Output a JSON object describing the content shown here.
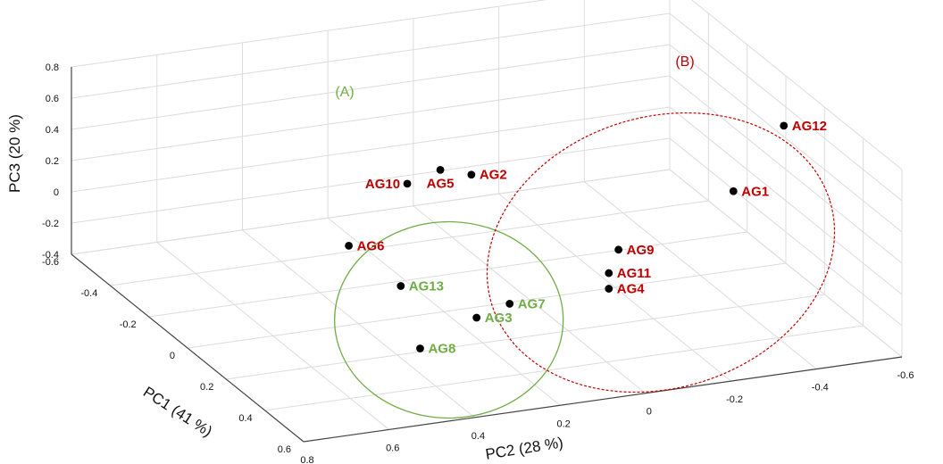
{
  "chart_data": {
    "type": "scatter",
    "dimensions": 3,
    "title": "",
    "xlabel": "PC1 (41 %)",
    "ylabel": "PC2 (28 %)",
    "zlabel": "PC3 (20 %)",
    "x_ticks": [
      "0.4",
      "0.2",
      "0",
      "-0.2",
      "-0.4",
      "-0.6",
      "0.6"
    ],
    "y_ticks": [
      "0.8",
      "0.6",
      "0.4",
      "0.2",
      "0",
      "-0.2",
      "-0.4",
      "-0.6"
    ],
    "z_ticks": [
      "0.8",
      "0.6",
      "0.4",
      "0.2",
      "0",
      "-0.2",
      "-0.4"
    ],
    "grid": true,
    "groups": [
      {
        "name": "(A)",
        "color": "#70ad47",
        "members": [
          "AG13",
          "AG3",
          "AG7",
          "AG8"
        ]
      },
      {
        "name": "(B)",
        "color": "#c00000",
        "members": [
          "AG12",
          "AG9",
          "AG11",
          "AG4",
          "AG1",
          "AG6",
          "AG10",
          "AG5",
          "AG2"
        ]
      }
    ],
    "points": [
      {
        "label": "AG13",
        "group": "(A)",
        "pc1": 0.55,
        "pc2": 0.55,
        "pc3": 0.45
      },
      {
        "label": "AG3",
        "group": "(A)",
        "pc1": 0.5,
        "pc2": 0.35,
        "pc3": 0.12
      },
      {
        "label": "AG7",
        "group": "(A)",
        "pc1": 0.45,
        "pc2": 0.25,
        "pc3": 0.12
      },
      {
        "label": "AG8",
        "group": "(A)",
        "pc1": 0.65,
        "pc2": 0.55,
        "pc3": 0.15
      },
      {
        "label": "AG12",
        "group": "(B)",
        "pc1": 0.1,
        "pc2": -0.55,
        "pc3": 0.6
      },
      {
        "label": "AG9",
        "group": "(B)",
        "pc1": 0.35,
        "pc2": -0.05,
        "pc3": 0.25
      },
      {
        "label": "AG11",
        "group": "(B)",
        "pc1": 0.3,
        "pc2": -0.05,
        "pc3": 0.05
      },
      {
        "label": "AG4",
        "group": "(B)",
        "pc1": 0.3,
        "pc2": -0.05,
        "pc3": -0.05
      },
      {
        "label": "AG1",
        "group": "(B)",
        "pc1": -0.05,
        "pc2": -0.5,
        "pc3": 0.05
      },
      {
        "label": "AG6",
        "group": "(B)",
        "pc1": -0.05,
        "pc2": 0.4,
        "pc3": 0.05
      },
      {
        "label": "AG10",
        "group": "(B)",
        "pc1": -0.3,
        "pc2": 0.15,
        "pc3": 0.1
      },
      {
        "label": "AG5",
        "group": "(B)",
        "pc1": -0.35,
        "pc2": 0.05,
        "pc3": 0.1
      },
      {
        "label": "AG2",
        "group": "(B)",
        "pc1": -0.3,
        "pc2": 0.0,
        "pc3": 0.1
      }
    ]
  }
}
